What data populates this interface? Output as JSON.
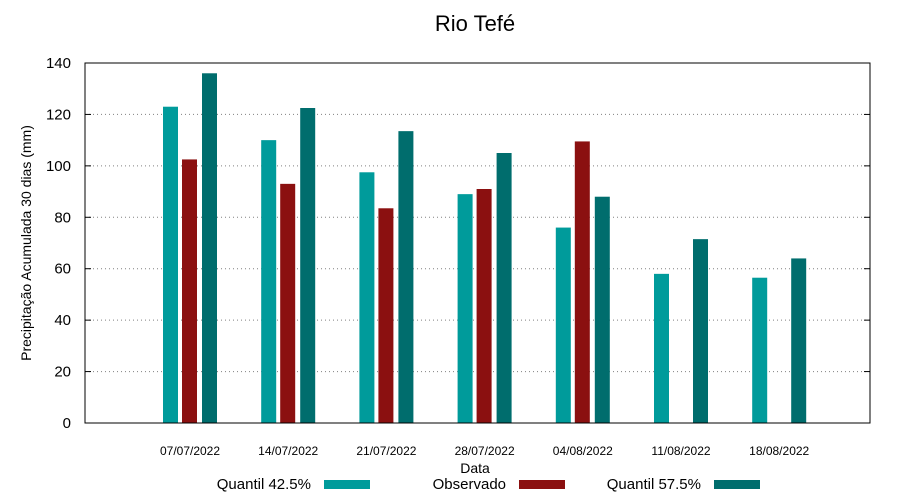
{
  "chart_data": {
    "type": "bar",
    "title": "Rio Tefé",
    "xlabel": "Data",
    "ylabel": "Precipitação Acumulada 30 dias (mm)",
    "ylim": [
      0,
      140
    ],
    "yticks": [
      0,
      20,
      40,
      60,
      80,
      100,
      120,
      140
    ],
    "grid": true,
    "legend_position": "bottom",
    "categories": [
      "07/07/2022",
      "14/07/2022",
      "21/07/2022",
      "28/07/2022",
      "04/08/2022",
      "11/08/2022",
      "18/08/2022"
    ],
    "series": [
      {
        "name": "Quantil 42.5%",
        "color": "#009b9b",
        "values": [
          123,
          110,
          97.5,
          89,
          76,
          58,
          56.5
        ]
      },
      {
        "name": "Observado",
        "color": "#8b1010",
        "values": [
          102.5,
          93,
          83.5,
          91,
          109.5,
          null,
          null
        ]
      },
      {
        "name": "Quantil 57.5%",
        "color": "#006d6d",
        "values": [
          136,
          122.5,
          113.5,
          105,
          88,
          71.5,
          64
        ]
      }
    ]
  }
}
